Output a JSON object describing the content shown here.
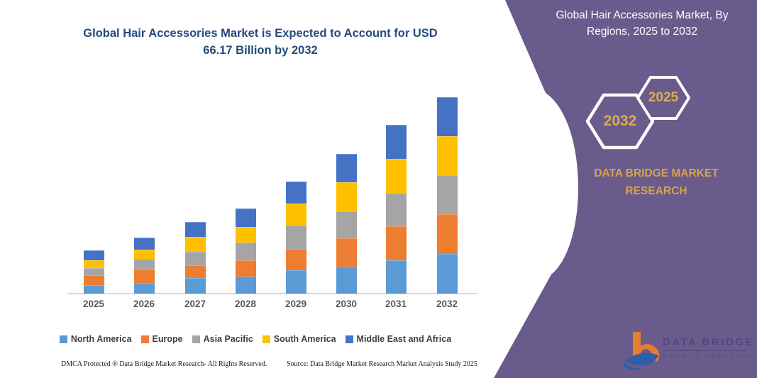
{
  "main_title": "Global Hair Accessories Market is Expected to Account for USD 66.17 Billion by 2032",
  "panel": {
    "title_line1": "Global Hair Accessories Market, By",
    "title_line2": "Regions, 2025 to 2032",
    "hexagons": [
      "2032",
      "2025"
    ],
    "brand_text": "DATA BRIDGE MARKET RESEARCH",
    "colors": {
      "background": "#695b8b",
      "accent_gold": "#d9a24a",
      "hexagon_border": "#ffffff"
    }
  },
  "chart_data": {
    "type": "bar",
    "stacked": true,
    "unit": "USD Billion",
    "title": "Global Hair Accessories Market is Expected to Account for USD 66.17 Billion by 2032",
    "xlabel": "",
    "ylabel": "",
    "axis_labels_visible": false,
    "grid": false,
    "legend_position": "bottom",
    "categories": [
      "2025",
      "2026",
      "2027",
      "2028",
      "2029",
      "2030",
      "2031",
      "2032"
    ],
    "series": [
      {
        "name": "North America",
        "color": "#5B9BD5",
        "values": [
          2.9,
          3.5,
          5.2,
          5.8,
          7.8,
          9.1,
          11.3,
          13.3
        ]
      },
      {
        "name": "Europe",
        "color": "#ED7D31",
        "values": [
          3.2,
          4.6,
          4.4,
          5.4,
          7.3,
          9.5,
          11.3,
          13.4
        ]
      },
      {
        "name": "Asia Pacific",
        "color": "#A5A5A5",
        "values": [
          2.6,
          3.5,
          4.6,
          5.9,
          7.8,
          9.1,
          11.4,
          13.1
        ]
      },
      {
        "name": "South America",
        "color": "#FFC000",
        "values": [
          2.5,
          3.2,
          5.0,
          5.4,
          7.5,
          9.8,
          11.3,
          13.3
        ]
      },
      {
        "name": "Middle East and Africa",
        "color": "#4472C4",
        "values": [
          3.3,
          4.0,
          4.9,
          6.2,
          7.4,
          9.5,
          11.5,
          13.07
        ]
      }
    ],
    "totals_usd_billion": [
      14.5,
      18.8,
      24.1,
      28.7,
      37.8,
      47.0,
      56.8,
      66.17
    ],
    "highlight_value": "USD 66.17 Billion by 2032"
  },
  "footer": {
    "dmca": "DMCA Protected ® Data Bridge Market Research-  All Rights Reserved.",
    "source": "Source: Data Bridge Market Research  Market Analysis Study 2025"
  },
  "logo": {
    "brand": "DATA BRIDGE",
    "sub": "MARKET RESEARCH"
  }
}
